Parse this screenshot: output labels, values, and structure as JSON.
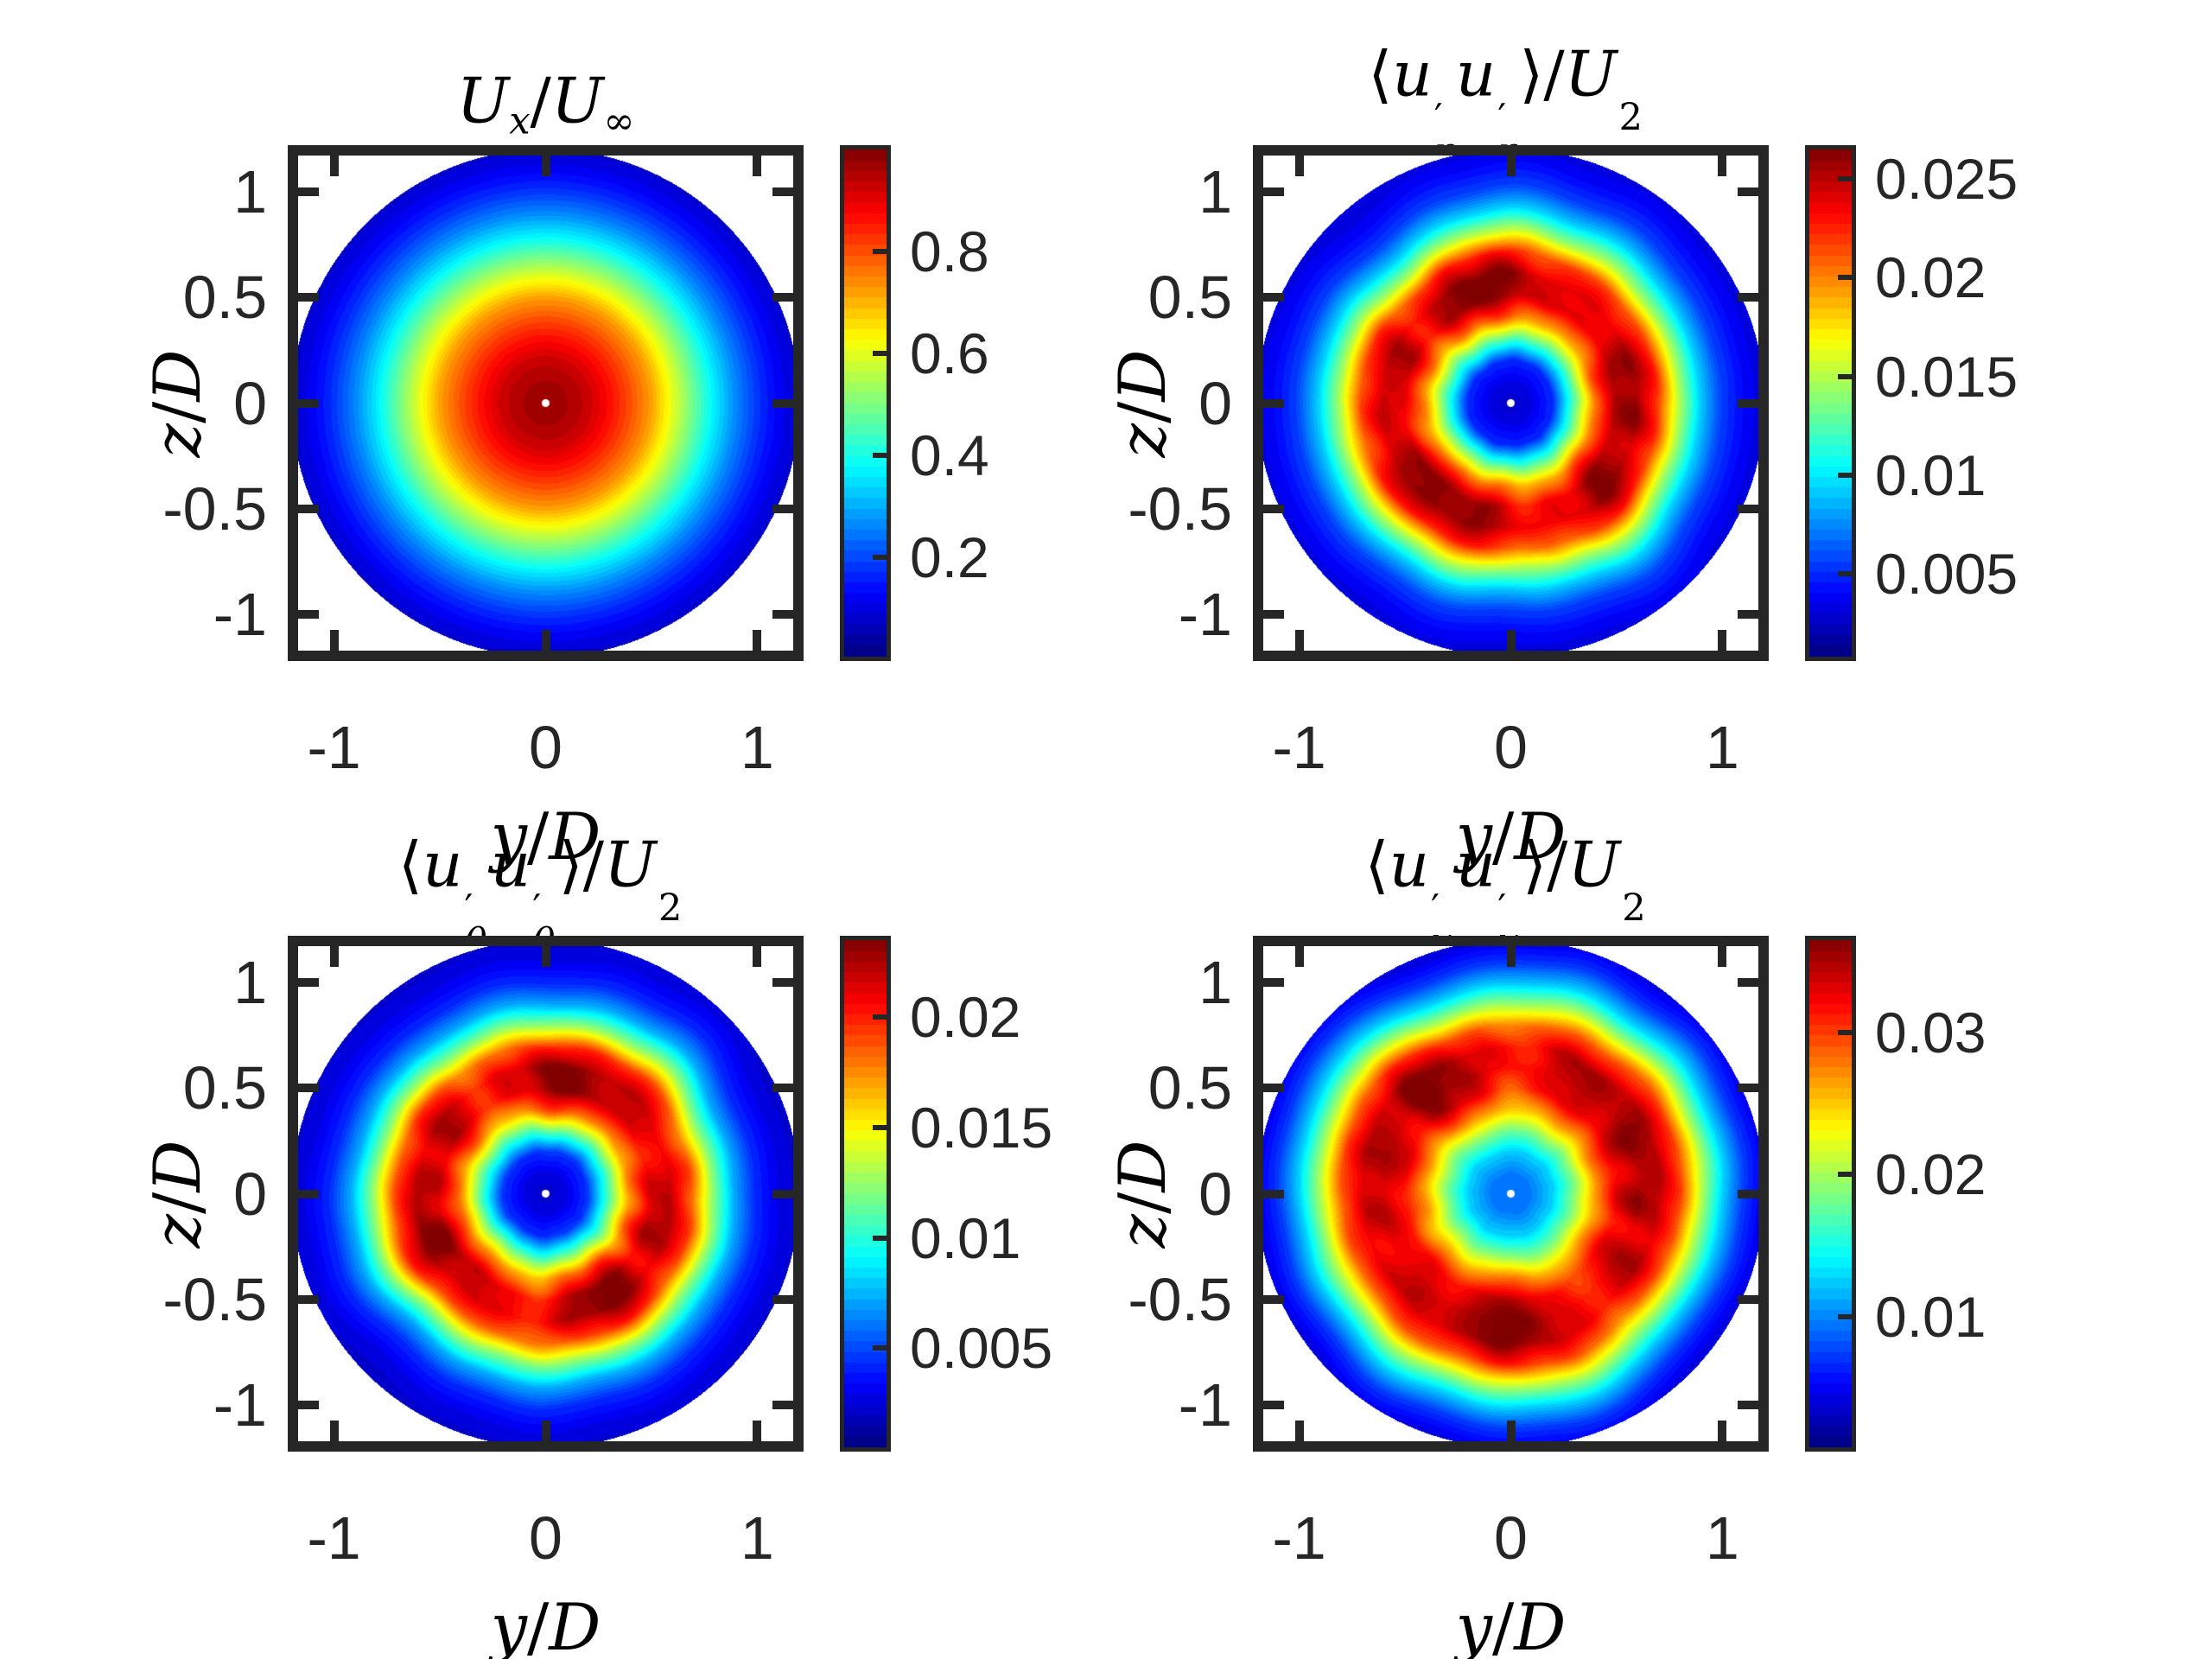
{
  "figure": {
    "background": "#ffffff",
    "axis_color": "#262626",
    "tick_text_color": "#262626",
    "label_text_color": "#000000",
    "colormap": "jet"
  },
  "axes_common": {
    "xlabel_tokens": [
      {
        "t": "y"
      },
      {
        "u": "/"
      },
      {
        "t": "D"
      }
    ],
    "ylabel_tokens": [
      {
        "t": "z"
      },
      {
        "u": "/"
      },
      {
        "t": "D"
      }
    ],
    "xlabel_text": "y/D",
    "ylabel_text": "z/D",
    "xlim": [
      -1.17,
      1.17
    ],
    "ylim": [
      -1.17,
      1.17
    ],
    "domain_radius": 1.2,
    "center_gap_dot": true,
    "xticks": [
      {
        "v": -1,
        "label": "-1"
      },
      {
        "v": 0,
        "label": "0"
      },
      {
        "v": 1,
        "label": "1"
      }
    ],
    "yticks": [
      {
        "v": 1,
        "label": "1"
      },
      {
        "v": 0.5,
        "label": "0.5"
      },
      {
        "v": 0,
        "label": "0"
      },
      {
        "v": -0.5,
        "label": "-0.5"
      },
      {
        "v": -1,
        "label": "-1"
      }
    ]
  },
  "chart_data": [
    {
      "type": "heatmap",
      "name": "mean-streamwise-velocity",
      "title_text": "Ux/Uinf",
      "title_tokens": [
        {
          "t": "U"
        },
        {
          "sub": "x"
        },
        {
          "u": "/"
        },
        {
          "t": "U"
        },
        {
          "sub": "∞",
          "rm": true
        }
      ],
      "clim": [
        0.005,
        1.0
      ],
      "colorbar_ticks": [
        {
          "v": 0.8,
          "label": "0.8"
        },
        {
          "v": 0.6,
          "label": "0.6"
        },
        {
          "v": 0.4,
          "label": "0.4"
        },
        {
          "v": 0.2,
          "label": "0.2"
        }
      ],
      "radial_profile": {
        "r": [
          0,
          0.1,
          0.2,
          0.3,
          0.4,
          0.5,
          0.6,
          0.7,
          0.8,
          0.9,
          1.0,
          1.1,
          1.2
        ],
        "v": [
          0.97,
          0.96,
          0.93,
          0.87,
          0.8,
          0.72,
          0.6,
          0.48,
          0.36,
          0.26,
          0.18,
          0.12,
          0.08
        ]
      },
      "noise": {
        "radial_amp": 0,
        "value_amp": 0,
        "speckle": 0,
        "r0": 0.5,
        "sigma": 0.3,
        "harmonics": [
          3,
          5,
          7,
          11,
          13
        ],
        "h_amps": [
          0,
          0,
          0,
          0,
          0
        ],
        "phases_r": [
          0,
          0,
          0,
          0,
          0
        ],
        "phases_v": [
          0,
          0,
          0,
          0,
          0
        ]
      }
    },
    {
      "type": "heatmap",
      "name": "radial-normal-stress",
      "title_text": "<u'r u'r>/Uinf^2",
      "title_tokens": [
        {
          "u": "⟨"
        },
        {
          "t": "u"
        },
        {
          "sup": "′",
          "sub": "r"
        },
        {
          "t": "u"
        },
        {
          "sup": "′",
          "sub": "r"
        },
        {
          "u": "⟩/"
        },
        {
          "t": "U"
        },
        {
          "sup": "2",
          "sub": "∞",
          "rm": true
        }
      ],
      "clim": [
        0.0008,
        0.0265
      ],
      "colorbar_ticks": [
        {
          "v": 0.025,
          "label": "0.025"
        },
        {
          "v": 0.02,
          "label": "0.02"
        },
        {
          "v": 0.015,
          "label": "0.015"
        },
        {
          "v": 0.01,
          "label": "0.01"
        },
        {
          "v": 0.005,
          "label": "0.005"
        }
      ],
      "radial_profile": {
        "r": [
          0,
          0.1,
          0.2,
          0.3,
          0.4,
          0.5,
          0.6,
          0.7,
          0.8,
          0.9,
          1.0,
          1.1,
          1.2
        ],
        "v": [
          0.0026,
          0.0034,
          0.005,
          0.0124,
          0.0201,
          0.0247,
          0.0252,
          0.0219,
          0.0149,
          0.0093,
          0.0057,
          0.0041,
          0.0031
        ]
      },
      "noise": {
        "radial_amp": 0.03,
        "value_amp": 0.09,
        "speckle": 0.03,
        "r0": 0.52,
        "sigma": 0.3,
        "harmonics": [
          3,
          5,
          7,
          11,
          13
        ],
        "h_amps": [
          0.5,
          0.32,
          0.27,
          0.22,
          0.16
        ],
        "phases_r": [
          0.8,
          2.7,
          4.9,
          1.1,
          3.9
        ],
        "phases_v": [
          2.2,
          5.6,
          0.7,
          3.1,
          4.4
        ]
      }
    },
    {
      "type": "heatmap",
      "name": "azimuthal-normal-stress",
      "title_text": "<u'theta u'theta>/Uinf^2",
      "title_tokens": [
        {
          "u": "⟨"
        },
        {
          "t": "u"
        },
        {
          "sup": "′",
          "sub": "θ"
        },
        {
          "t": "u"
        },
        {
          "sup": "′",
          "sub": "θ"
        },
        {
          "u": "⟩/"
        },
        {
          "t": "U"
        },
        {
          "sup": "2",
          "sub": "∞",
          "rm": true
        }
      ],
      "clim": [
        0.0005,
        0.0235
      ],
      "colorbar_ticks": [
        {
          "v": 0.02,
          "label": "0.02"
        },
        {
          "v": 0.015,
          "label": "0.015"
        },
        {
          "v": 0.01,
          "label": "0.01"
        },
        {
          "v": 0.005,
          "label": "0.005"
        }
      ],
      "radial_profile": {
        "r": [
          0,
          0.1,
          0.2,
          0.3,
          0.4,
          0.5,
          0.6,
          0.7,
          0.8,
          0.9,
          1.0,
          1.1,
          1.2
        ],
        "v": [
          0.0021,
          0.0028,
          0.0045,
          0.0109,
          0.0178,
          0.0217,
          0.0221,
          0.0189,
          0.0125,
          0.0074,
          0.0044,
          0.003,
          0.0023
        ]
      },
      "noise": {
        "radial_amp": 0.03,
        "value_amp": 0.1,
        "speckle": 0.03,
        "r0": 0.5,
        "sigma": 0.3,
        "harmonics": [
          3,
          5,
          7,
          11,
          13
        ],
        "h_amps": [
          0.5,
          0.32,
          0.27,
          0.22,
          0.16
        ],
        "phases_r": [
          1.6,
          0.3,
          5.1,
          2.8,
          0.9
        ],
        "phases_v": [
          4.0,
          1.2,
          2.9,
          5.5,
          0.2
        ]
      }
    },
    {
      "type": "heatmap",
      "name": "streamwise-normal-stress",
      "title_text": "<u'x u'x>/Uinf^2",
      "title_tokens": [
        {
          "u": "⟨"
        },
        {
          "t": "u"
        },
        {
          "sup": "′",
          "sub": "x"
        },
        {
          "t": "u"
        },
        {
          "sup": "′",
          "sub": "x"
        },
        {
          "u": "⟩/"
        },
        {
          "t": "U"
        },
        {
          "sup": "2",
          "sub": "∞",
          "rm": true
        }
      ],
      "clim": [
        0.0008,
        0.0365
      ],
      "colorbar_ticks": [
        {
          "v": 0.03,
          "label": "0.03"
        },
        {
          "v": 0.02,
          "label": "0.02"
        },
        {
          "v": 0.01,
          "label": "0.01"
        }
      ],
      "radial_profile": {
        "r": [
          0,
          0.1,
          0.2,
          0.3,
          0.4,
          0.5,
          0.6,
          0.7,
          0.8,
          0.9,
          1.0,
          1.1,
          1.2
        ],
        "v": [
          0.009,
          0.0097,
          0.0126,
          0.0187,
          0.0265,
          0.0322,
          0.0344,
          0.034,
          0.0294,
          0.0204,
          0.0126,
          0.0072,
          0.0044
        ]
      },
      "noise": {
        "radial_amp": 0.03,
        "value_amp": 0.09,
        "speckle": 0.03,
        "r0": 0.58,
        "sigma": 0.3,
        "harmonics": [
          3,
          5,
          7,
          11,
          13
        ],
        "h_amps": [
          0.5,
          0.32,
          0.27,
          0.22,
          0.16
        ],
        "phases_r": [
          2.9,
          4.4,
          0.6,
          3.7,
          1.8
        ],
        "phases_v": [
          0.5,
          3.3,
          5.8,
          1.9,
          2.7
        ]
      }
    }
  ]
}
